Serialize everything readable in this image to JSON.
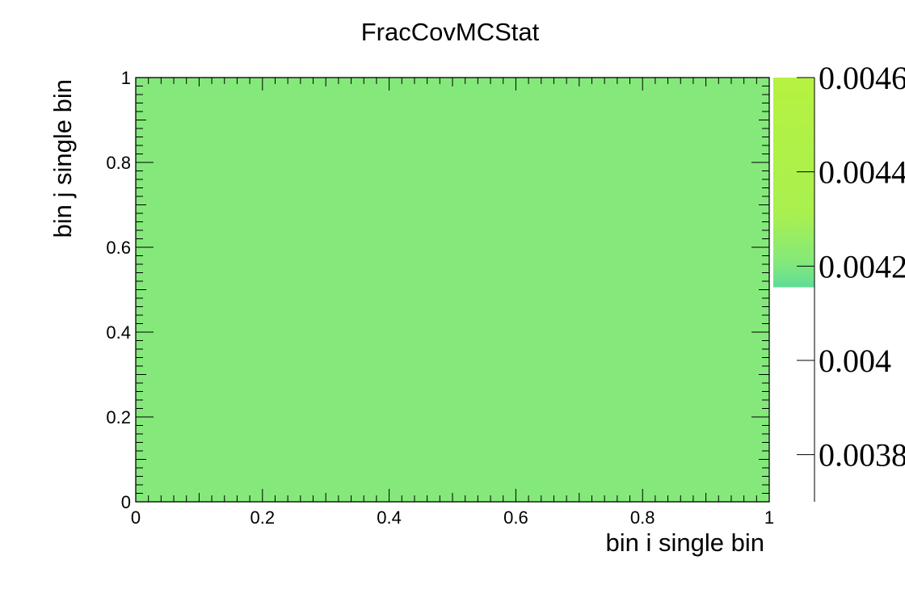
{
  "chart_data": {
    "type": "heatmap",
    "title": "FracCovMCStat",
    "xlabel": "bin i single bin",
    "ylabel": "bin j single bin",
    "xlim": [
      0,
      1
    ],
    "ylim": [
      0,
      1
    ],
    "x_ticks": [
      "0",
      "0.2",
      "0.4",
      "0.6",
      "0.8",
      "1"
    ],
    "y_ticks": [
      "0",
      "0.2",
      "0.4",
      "0.6",
      "0.8",
      "1"
    ],
    "cells": [
      {
        "x": [
          0,
          1
        ],
        "y": [
          0,
          1
        ],
        "value": 0.00415
      }
    ],
    "colorbar": {
      "range": [
        0.0037,
        0.0046
      ],
      "ticks": [
        "0.0038",
        "0.004",
        "0.0042",
        "0.0044",
        "0.0046"
      ],
      "tick_values": [
        0.0038,
        0.004,
        0.0042,
        0.0044,
        0.0046
      ],
      "colors": [
        "#5fdc96",
        "#84e97a",
        "#a9f04f",
        "#b6f240"
      ]
    },
    "colors": {
      "cell": "#84e97a",
      "axis": "#000000",
      "background": "#ffffff"
    },
    "grid": false
  }
}
